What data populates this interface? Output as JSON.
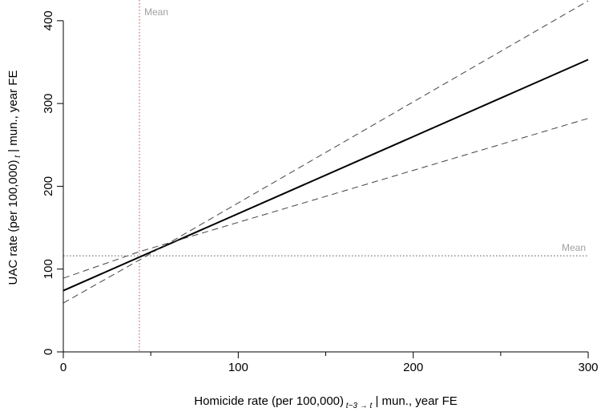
{
  "chart_data": {
    "type": "line",
    "xlabel_main": "Homicide rate (per 100,000)",
    "xlabel_sub": "t−3 → t",
    "xlabel_tail": " | mun., year FE",
    "ylabel_main": "UAC rate (per 100,000)",
    "ylabel_sub": "t",
    "ylabel_tail": " | mun., year FE",
    "xlim": [
      0,
      300
    ],
    "ylim": [
      0,
      425
    ],
    "x_major_ticks": [
      0,
      100,
      200,
      300
    ],
    "x_minor_ticks": [
      50,
      150,
      250
    ],
    "y_ticks": [
      0,
      100,
      200,
      300,
      400
    ],
    "series": [
      {
        "style": "solid",
        "x": [
          0,
          300
        ],
        "y": [
          74,
          353
        ]
      },
      {
        "style": "dashed",
        "x": [
          0,
          43.5,
          300
        ],
        "y": [
          89,
          121,
          282
        ]
      },
      {
        "style": "dashed",
        "x": [
          0,
          43.5,
          300
        ],
        "y": [
          59,
          111,
          424
        ]
      }
    ],
    "reference_lines": [
      {
        "orientation": "vertical",
        "value": 43.5,
        "label": "Mean",
        "color": "#b05050"
      },
      {
        "orientation": "horizontal",
        "value": 116,
        "label": "Mean",
        "color": "#555555"
      }
    ],
    "label_color": "#a0a0a0",
    "grid": false,
    "legend": "none"
  }
}
